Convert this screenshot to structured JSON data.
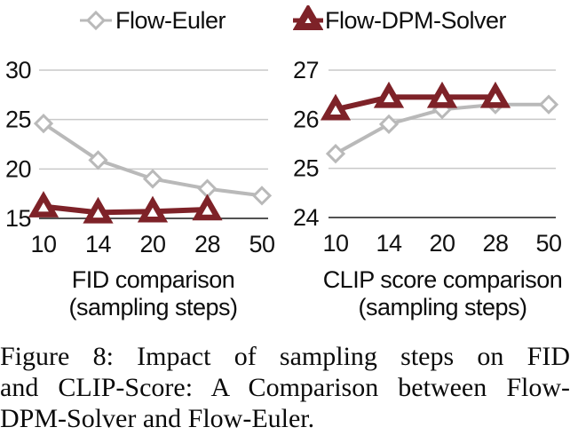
{
  "legend": {
    "items": [
      {
        "label": "Flow-Euler",
        "marker": "diamond",
        "color": "#b9b9b9"
      },
      {
        "label": "Flow-DPM-Solver",
        "marker": "triangle",
        "color": "#7e2228"
      }
    ]
  },
  "colors": {
    "flow_euler": "#b9b9b9",
    "flow_dpm_solver": "#7e2228",
    "gridline": "#c9c9c9",
    "axis": "#1a1a1a",
    "marker_fill": "#ffffff",
    "text": "#111111"
  },
  "chart_data": [
    {
      "type": "line",
      "title": "FID comparison",
      "subtitle": "(sampling steps)",
      "categories": [
        "10",
        "14",
        "20",
        "28",
        "50"
      ],
      "ylim": [
        15,
        30
      ],
      "yticks": [
        30,
        25,
        20,
        15
      ],
      "grid": true,
      "legend_position": "top",
      "series": [
        {
          "name": "Flow-Euler",
          "marker": "diamond",
          "color": "#b9b9b9",
          "values": [
            24.6,
            20.9,
            19.0,
            18.0,
            17.3
          ]
        },
        {
          "name": "Flow-DPM-Solver",
          "marker": "triangle",
          "color": "#7e2228",
          "values": [
            16.2,
            15.6,
            15.7,
            15.9,
            null
          ]
        }
      ]
    },
    {
      "type": "line",
      "title": "CLIP score comparison",
      "subtitle": "(sampling steps)",
      "categories": [
        "10",
        "14",
        "20",
        "28",
        "50"
      ],
      "ylim": [
        24,
        27
      ],
      "yticks": [
        27,
        26,
        25,
        24
      ],
      "grid": true,
      "legend_position": "top",
      "series": [
        {
          "name": "Flow-Euler",
          "marker": "diamond",
          "color": "#b9b9b9",
          "values": [
            25.3,
            25.9,
            26.2,
            26.3,
            26.3
          ]
        },
        {
          "name": "Flow-DPM-Solver",
          "marker": "triangle",
          "color": "#7e2228",
          "values": [
            26.2,
            26.45,
            26.45,
            26.45,
            null
          ]
        }
      ]
    }
  ],
  "caption": {
    "lines": [
      "Figure 8:  Impact of sampling steps on FID",
      "and CLIP-Score: A Comparison between Flow-",
      "DPM-Solver and Flow-Euler."
    ]
  }
}
